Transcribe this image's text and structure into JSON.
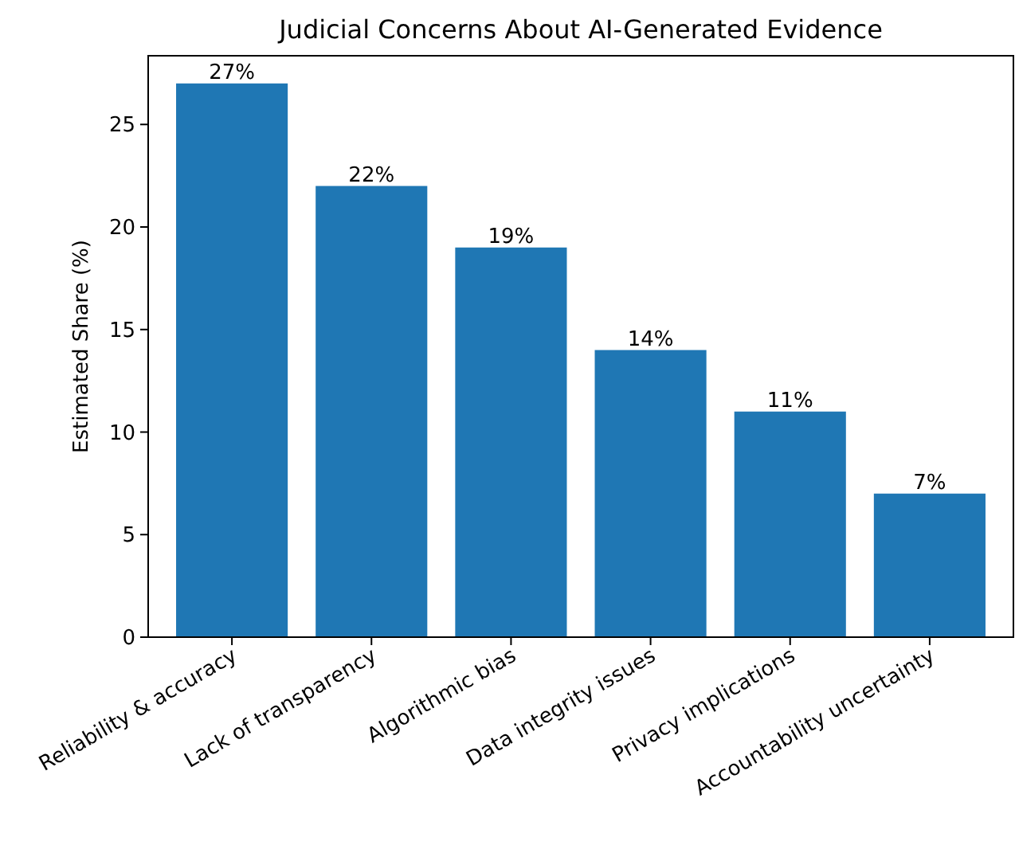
{
  "chart_data": {
    "type": "bar",
    "title": "Judicial Concerns About AI-Generated Evidence",
    "ylabel": "Estimated Share (%)",
    "categories": [
      "Reliability & accuracy",
      "Lack of transparency",
      "Algorithmic bias",
      "Data integrity issues",
      "Privacy implications",
      "Accountability uncertainty"
    ],
    "values": [
      27,
      22,
      19,
      14,
      11,
      7
    ],
    "color": "#1f77b4",
    "value_labels": [
      "27%",
      "22%",
      "19%",
      "14%",
      "11%",
      "7%"
    ],
    "ylim": [
      0,
      28.35
    ],
    "yticks": [
      0,
      5,
      10,
      15,
      20,
      25
    ]
  }
}
